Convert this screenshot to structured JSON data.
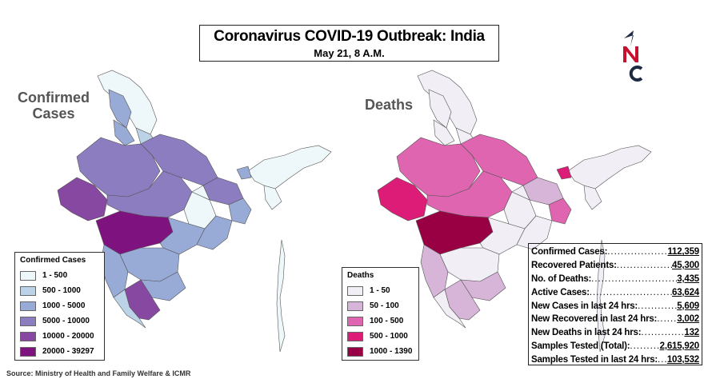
{
  "header": {
    "title": "Coronavirus COVID-19 Outbreak: India",
    "subtitle": "May 21, 8 A.M."
  },
  "logo": {
    "icon": "nc-logo-icon",
    "letters": "NC",
    "colors": {
      "arrow": "#1f2a44",
      "n": "#c8102e",
      "c": "#1f2a44"
    }
  },
  "maps": {
    "confirmed": {
      "label_line1": "Confirmed",
      "label_line2": "Cases",
      "legend_title": "Confirmed Cases",
      "legend": [
        {
          "label": "1 - 500",
          "color": "#eef7f9"
        },
        {
          "label": "500 - 1000",
          "color": "#bcd3e7"
        },
        {
          "label": "1000 - 5000",
          "color": "#98aad6"
        },
        {
          "label": "5000 - 10000",
          "color": "#8c7dc1"
        },
        {
          "label": "10000 - 20000",
          "color": "#8748a2"
        },
        {
          "label": "20000 - 39297",
          "color": "#7e137f"
        }
      ]
    },
    "deaths": {
      "label": "Deaths",
      "legend_title": "Deaths",
      "legend": [
        {
          "label": "1 - 50",
          "color": "#f1eef6"
        },
        {
          "label": "50 - 100",
          "color": "#d7b5d8"
        },
        {
          "label": "100 - 500",
          "color": "#df65b0"
        },
        {
          "label": "500 - 1000",
          "color": "#dd1c77"
        },
        {
          "label": "1000 - 1390",
          "color": "#980043"
        }
      ]
    }
  },
  "stats": [
    {
      "label": "Confirmed Cases:",
      "value": "112,359"
    },
    {
      "label": "Recovered Patients:",
      "value": "45,300"
    },
    {
      "label": "No. of Deaths:",
      "value": "3,435"
    },
    {
      "label": "Active Cases:",
      "value": "63,624"
    },
    {
      "label": "New Cases in last 24 hrs:",
      "value": "5,609"
    },
    {
      "label": "New Recovered in last 24 hrs:",
      "value": "3,002"
    },
    {
      "label": "New Deaths in last 24 hrs:",
      "value": "132"
    },
    {
      "label": "Samples Tested (Total):",
      "value": "2,615,920"
    },
    {
      "label": "Samples Tested in last 24 hrs:",
      "value": "103,532"
    }
  ],
  "source": "Source: Ministry of Health and Family Welfare & ICMR"
}
